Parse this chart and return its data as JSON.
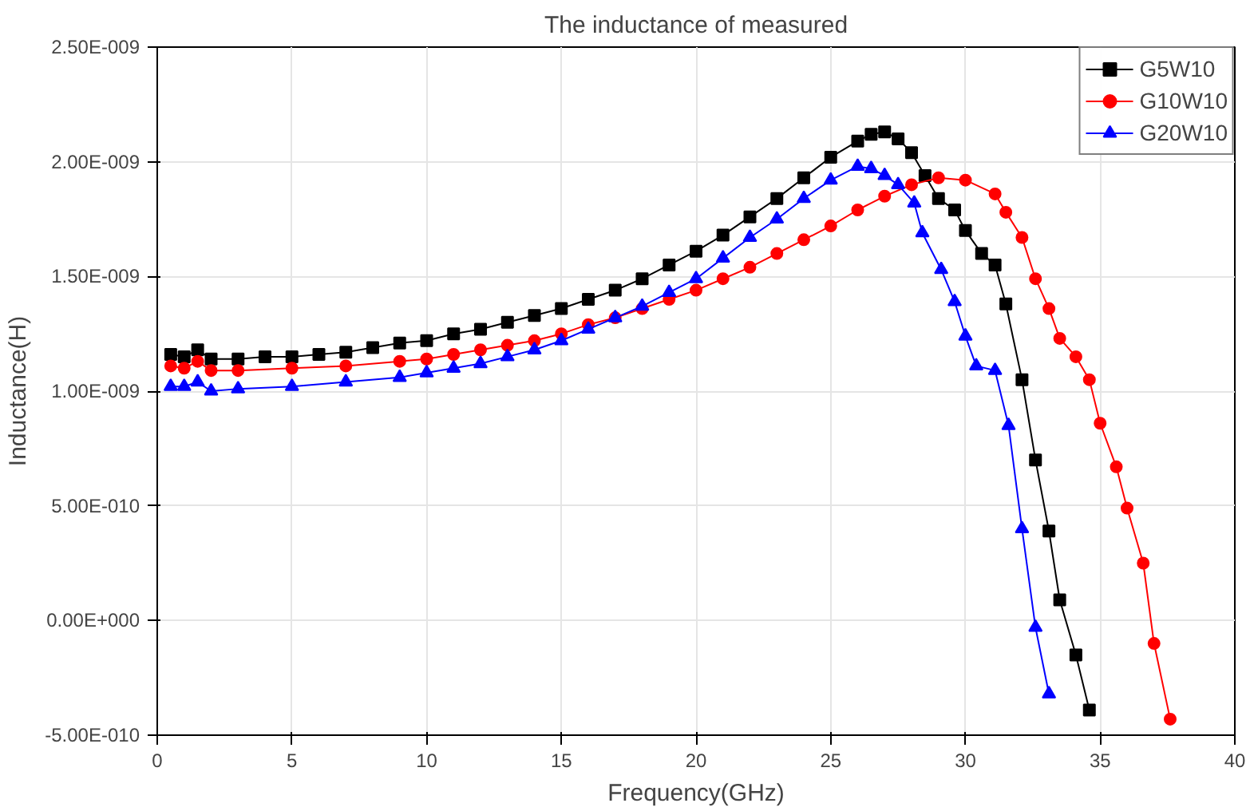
{
  "chart_data": {
    "type": "line",
    "title": "The inductance of measured",
    "xlabel": "Frequency(GHz)",
    "ylabel": "Inductance(H)",
    "xlim": [
      0,
      40
    ],
    "xticks": [
      0,
      5,
      10,
      15,
      20,
      25,
      30,
      35,
      40
    ],
    "ylim": [
      -5e-10,
      2.5e-09
    ],
    "yticks": [
      {
        "value": -5e-10,
        "label": "-5.00E-010"
      },
      {
        "value": 0,
        "label": "0.00E+000"
      },
      {
        "value": 5e-10,
        "label": "5.00E-010"
      },
      {
        "value": 1e-09,
        "label": "1.00E-009"
      },
      {
        "value": 1.5e-09,
        "label": "1.50E-009"
      },
      {
        "value": 2e-09,
        "label": "2.00E-009"
      },
      {
        "value": 2.5e-09,
        "label": "2.50E-009"
      }
    ],
    "grid": true,
    "legend": "top right",
    "series": [
      {
        "name": "G5W10",
        "color": "#000000",
        "marker": "square",
        "x": [
          0.5,
          1,
          1.5,
          2,
          3,
          4,
          5,
          6,
          7,
          8,
          9,
          10,
          11,
          12,
          13,
          14,
          15,
          16,
          17,
          18,
          19,
          20,
          21,
          22,
          23,
          24,
          25,
          26,
          26.5,
          27,
          27.5,
          28,
          28.5,
          29.0,
          29.6,
          30.0,
          30.6,
          31.1,
          31.5,
          32.1,
          32.6,
          33.1,
          33.5,
          34.1,
          34.6
        ],
        "values": [
          1.16e-09,
          1.15e-09,
          1.18e-09,
          1.14e-09,
          1.14e-09,
          1.15e-09,
          1.15e-09,
          1.16e-09,
          1.17e-09,
          1.19e-09,
          1.21e-09,
          1.22e-09,
          1.25e-09,
          1.27e-09,
          1.3e-09,
          1.33e-09,
          1.36e-09,
          1.4e-09,
          1.44e-09,
          1.49e-09,
          1.55e-09,
          1.61e-09,
          1.68e-09,
          1.76e-09,
          1.84e-09,
          1.93e-09,
          2.02e-09,
          2.09e-09,
          2.12e-09,
          2.13e-09,
          2.1e-09,
          2.04e-09,
          1.94e-09,
          1.84e-09,
          1.79e-09,
          1.7e-09,
          1.6e-09,
          1.55e-09,
          1.38e-09,
          1.05e-09,
          7e-10,
          3.9e-10,
          9e-11,
          -1.5e-10,
          -3.9e-10
        ]
      },
      {
        "name": "G10W10",
        "color": "#ff0000",
        "marker": "circle",
        "x": [
          0.5,
          1,
          1.5,
          2,
          3,
          5,
          7,
          9,
          10,
          11,
          12,
          13,
          14,
          15,
          16,
          17,
          18,
          19,
          20,
          21,
          22,
          23,
          24,
          25,
          26,
          27,
          28,
          29,
          30,
          31.1,
          31.5,
          32.1,
          32.6,
          33.1,
          33.5,
          34.1,
          34.6,
          35.0,
          35.6,
          36.0,
          36.6,
          37.0,
          37.6
        ],
        "values": [
          1.11e-09,
          1.1e-09,
          1.13e-09,
          1.09e-09,
          1.09e-09,
          1.1e-09,
          1.11e-09,
          1.13e-09,
          1.14e-09,
          1.16e-09,
          1.18e-09,
          1.2e-09,
          1.22e-09,
          1.25e-09,
          1.29e-09,
          1.32e-09,
          1.36e-09,
          1.4e-09,
          1.44e-09,
          1.49e-09,
          1.54e-09,
          1.6e-09,
          1.66e-09,
          1.72e-09,
          1.79e-09,
          1.85e-09,
          1.9e-09,
          1.93e-09,
          1.92e-09,
          1.86e-09,
          1.78e-09,
          1.67e-09,
          1.49e-09,
          1.36e-09,
          1.23e-09,
          1.15e-09,
          1.05e-09,
          8.6e-10,
          6.7e-10,
          4.9e-10,
          2.5e-10,
          -1e-10,
          -4.3e-10
        ]
      },
      {
        "name": "G20W10",
        "color": "#0000ff",
        "marker": "triangle",
        "x": [
          0.5,
          1,
          1.5,
          2,
          3,
          5,
          7,
          9,
          10,
          11,
          12,
          13,
          14,
          15,
          16,
          17,
          18,
          19,
          20,
          21,
          22,
          23,
          24,
          25,
          26,
          26.5,
          27,
          27.5,
          28.1,
          28.4,
          29.1,
          29.6,
          30.0,
          30.4,
          31.1,
          31.6,
          32.1,
          32.6,
          33.1
        ],
        "values": [
          1.02e-09,
          1.02e-09,
          1.04e-09,
          1e-09,
          1.01e-09,
          1.02e-09,
          1.04e-09,
          1.06e-09,
          1.08e-09,
          1.1e-09,
          1.12e-09,
          1.15e-09,
          1.18e-09,
          1.22e-09,
          1.27e-09,
          1.32e-09,
          1.37e-09,
          1.43e-09,
          1.49e-09,
          1.58e-09,
          1.67e-09,
          1.75e-09,
          1.84e-09,
          1.92e-09,
          1.98e-09,
          1.97e-09,
          1.94e-09,
          1.9e-09,
          1.82e-09,
          1.69e-09,
          1.53e-09,
          1.39e-09,
          1.24e-09,
          1.11e-09,
          1.09e-09,
          8.5e-10,
          4e-10,
          -3e-11,
          -3.2e-10
        ]
      }
    ]
  }
}
